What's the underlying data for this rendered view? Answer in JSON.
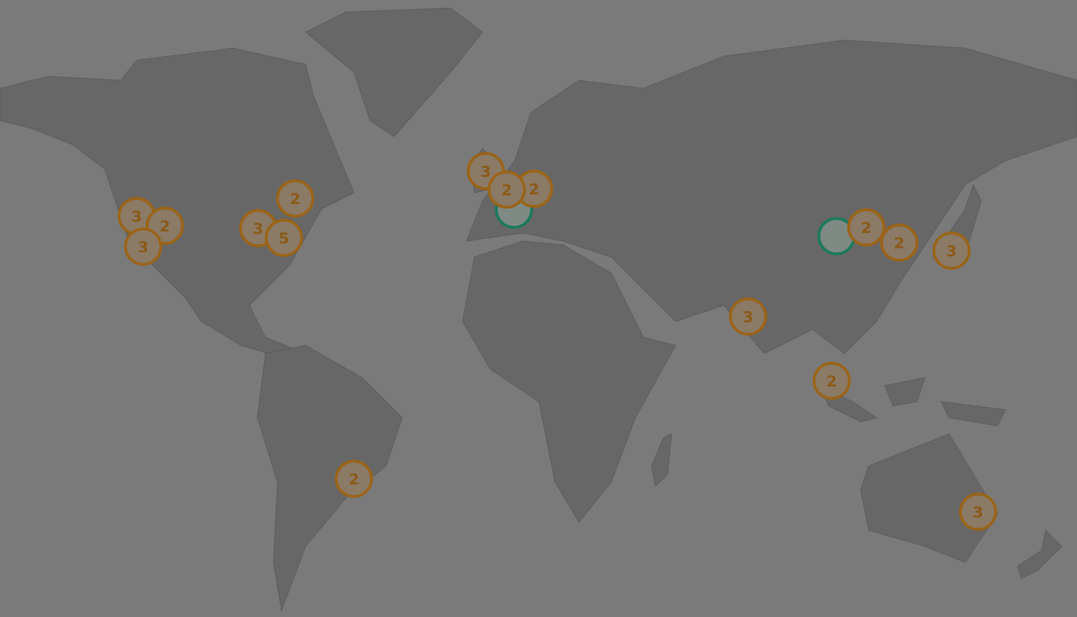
{
  "map": {
    "colors": {
      "ocean": "#7a7a7a",
      "land": "#676767",
      "cluster_fill": "#8b7a66",
      "cluster_stroke": "#9a6418",
      "cluster_text": "#8a5a18",
      "selected_stroke": "#1a7a5c",
      "selected_fill": "#7f8a85"
    },
    "clusters": [
      {
        "count": "3"
      },
      {
        "count": "2"
      },
      {
        "count": "3"
      },
      {
        "count": "2"
      },
      {
        "count": "3"
      },
      {
        "count": "5"
      },
      {
        "count": "3"
      },
      {
        "count": "2"
      },
      {
        "count": "2"
      },
      {
        "count": "2"
      },
      {
        "count": "2"
      },
      {
        "count": "3"
      },
      {
        "count": "2"
      },
      {
        "count": "2"
      },
      {
        "count": "3"
      },
      {
        "count": "3"
      }
    ],
    "selected_markers": [
      {
        "icon": "empty-circle-marker"
      },
      {
        "icon": "empty-circle-marker"
      }
    ]
  }
}
